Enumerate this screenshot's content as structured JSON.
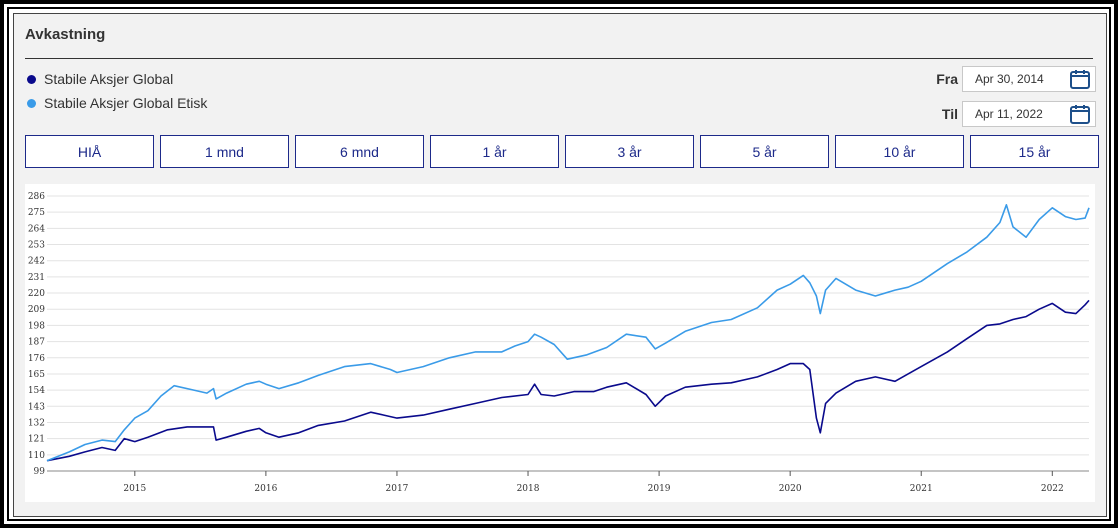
{
  "panel": {
    "title": "Avkastning"
  },
  "legend": [
    {
      "label": "Stabile Aksjer Global",
      "color": "#0a0a8c"
    },
    {
      "label": "Stabile Aksjer Global Etisk",
      "color": "#3a9be8"
    }
  ],
  "date_range": {
    "from": {
      "label": "Fra",
      "value": "Apr 30, 2014",
      "icon": "calendar-icon"
    },
    "to": {
      "label": "Til",
      "value": "Apr 11, 2022",
      "icon": "calendar-icon"
    }
  },
  "range_buttons": [
    "HIÅ",
    "1 mnd",
    "6 mnd",
    "1 år",
    "3 år",
    "5 år",
    "10 år",
    "15 år"
  ],
  "colors": {
    "accent": "#1d2a8a",
    "series_global": "#0a0a8c",
    "series_etisk": "#3a9be8"
  },
  "chart_data": {
    "type": "line",
    "title": "",
    "xlabel": "",
    "ylabel": "",
    "xlim": [
      2014.33,
      2022.28
    ],
    "ylim": [
      99,
      286
    ],
    "y_ticks": [
      99,
      110,
      121,
      132,
      143,
      154,
      165,
      176,
      187,
      198,
      209,
      220,
      231,
      242,
      253,
      264,
      275,
      286
    ],
    "x_ticks": [
      {
        "label": "2015",
        "value": 2015.0
      },
      {
        "label": "2016",
        "value": 2016.0
      },
      {
        "label": "2017",
        "value": 2017.0
      },
      {
        "label": "2018",
        "value": 2018.0
      },
      {
        "label": "2019",
        "value": 2019.0
      },
      {
        "label": "2020",
        "value": 2020.0
      },
      {
        "label": "2021",
        "value": 2021.0
      },
      {
        "label": "2022",
        "value": 2022.0
      }
    ],
    "grid": true,
    "series": [
      {
        "name": "Stabile Aksjer Global",
        "color": "#0a0a8c",
        "points": [
          [
            2014.33,
            106
          ],
          [
            2014.5,
            109
          ],
          [
            2014.62,
            112
          ],
          [
            2014.75,
            115
          ],
          [
            2014.85,
            113
          ],
          [
            2014.92,
            121
          ],
          [
            2015.0,
            119
          ],
          [
            2015.1,
            122
          ],
          [
            2015.25,
            127
          ],
          [
            2015.4,
            129
          ],
          [
            2015.5,
            129
          ],
          [
            2015.6,
            129
          ],
          [
            2015.62,
            120
          ],
          [
            2015.7,
            122
          ],
          [
            2015.85,
            126
          ],
          [
            2015.95,
            128
          ],
          [
            2016.0,
            125
          ],
          [
            2016.1,
            122
          ],
          [
            2016.25,
            125
          ],
          [
            2016.4,
            130
          ],
          [
            2016.6,
            133
          ],
          [
            2016.8,
            139
          ],
          [
            2016.9,
            137
          ],
          [
            2017.0,
            135
          ],
          [
            2017.2,
            137
          ],
          [
            2017.4,
            141
          ],
          [
            2017.6,
            145
          ],
          [
            2017.8,
            149
          ],
          [
            2018.0,
            151
          ],
          [
            2018.05,
            158
          ],
          [
            2018.1,
            151
          ],
          [
            2018.2,
            150
          ],
          [
            2018.35,
            153
          ],
          [
            2018.5,
            153
          ],
          [
            2018.6,
            156
          ],
          [
            2018.75,
            159
          ],
          [
            2018.9,
            151
          ],
          [
            2018.97,
            143
          ],
          [
            2019.05,
            150
          ],
          [
            2019.2,
            156
          ],
          [
            2019.4,
            158
          ],
          [
            2019.55,
            159
          ],
          [
            2019.75,
            163
          ],
          [
            2019.9,
            168
          ],
          [
            2020.0,
            172
          ],
          [
            2020.1,
            172
          ],
          [
            2020.15,
            168
          ],
          [
            2020.2,
            135
          ],
          [
            2020.23,
            125
          ],
          [
            2020.27,
            145
          ],
          [
            2020.35,
            152
          ],
          [
            2020.5,
            160
          ],
          [
            2020.65,
            163
          ],
          [
            2020.8,
            160
          ],
          [
            2020.9,
            165
          ],
          [
            2021.0,
            170
          ],
          [
            2021.2,
            180
          ],
          [
            2021.35,
            189
          ],
          [
            2021.5,
            198
          ],
          [
            2021.6,
            199
          ],
          [
            2021.7,
            202
          ],
          [
            2021.8,
            204
          ],
          [
            2021.9,
            209
          ],
          [
            2022.0,
            213
          ],
          [
            2022.1,
            207
          ],
          [
            2022.18,
            206
          ],
          [
            2022.25,
            212
          ],
          [
            2022.28,
            215
          ]
        ]
      },
      {
        "name": "Stabile Aksjer Global Etisk",
        "color": "#3a9be8",
        "points": [
          [
            2014.33,
            106
          ],
          [
            2014.5,
            112
          ],
          [
            2014.62,
            117
          ],
          [
            2014.75,
            120
          ],
          [
            2014.85,
            119
          ],
          [
            2014.92,
            127
          ],
          [
            2015.0,
            135
          ],
          [
            2015.1,
            140
          ],
          [
            2015.2,
            150
          ],
          [
            2015.3,
            157
          ],
          [
            2015.45,
            154
          ],
          [
            2015.55,
            152
          ],
          [
            2015.6,
            155
          ],
          [
            2015.62,
            148
          ],
          [
            2015.7,
            152
          ],
          [
            2015.85,
            158
          ],
          [
            2015.95,
            160
          ],
          [
            2016.0,
            158
          ],
          [
            2016.1,
            155
          ],
          [
            2016.25,
            159
          ],
          [
            2016.4,
            164
          ],
          [
            2016.6,
            170
          ],
          [
            2016.8,
            172
          ],
          [
            2016.95,
            168
          ],
          [
            2017.0,
            166
          ],
          [
            2017.2,
            170
          ],
          [
            2017.4,
            176
          ],
          [
            2017.6,
            180
          ],
          [
            2017.8,
            180
          ],
          [
            2017.9,
            184
          ],
          [
            2018.0,
            187
          ],
          [
            2018.05,
            192
          ],
          [
            2018.1,
            190
          ],
          [
            2018.2,
            185
          ],
          [
            2018.3,
            175
          ],
          [
            2018.45,
            178
          ],
          [
            2018.6,
            183
          ],
          [
            2018.75,
            192
          ],
          [
            2018.9,
            190
          ],
          [
            2018.97,
            182
          ],
          [
            2019.05,
            186
          ],
          [
            2019.2,
            194
          ],
          [
            2019.4,
            200
          ],
          [
            2019.55,
            202
          ],
          [
            2019.75,
            210
          ],
          [
            2019.9,
            222
          ],
          [
            2020.0,
            226
          ],
          [
            2020.1,
            232
          ],
          [
            2020.15,
            227
          ],
          [
            2020.2,
            218
          ],
          [
            2020.23,
            206
          ],
          [
            2020.27,
            222
          ],
          [
            2020.35,
            230
          ],
          [
            2020.5,
            222
          ],
          [
            2020.65,
            218
          ],
          [
            2020.8,
            222
          ],
          [
            2020.9,
            224
          ],
          [
            2021.0,
            228
          ],
          [
            2021.2,
            240
          ],
          [
            2021.35,
            248
          ],
          [
            2021.5,
            258
          ],
          [
            2021.6,
            268
          ],
          [
            2021.65,
            280
          ],
          [
            2021.7,
            265
          ],
          [
            2021.8,
            258
          ],
          [
            2021.9,
            270
          ],
          [
            2022.0,
            278
          ],
          [
            2022.1,
            272
          ],
          [
            2022.18,
            270
          ],
          [
            2022.25,
            271
          ],
          [
            2022.28,
            278
          ]
        ]
      }
    ]
  }
}
